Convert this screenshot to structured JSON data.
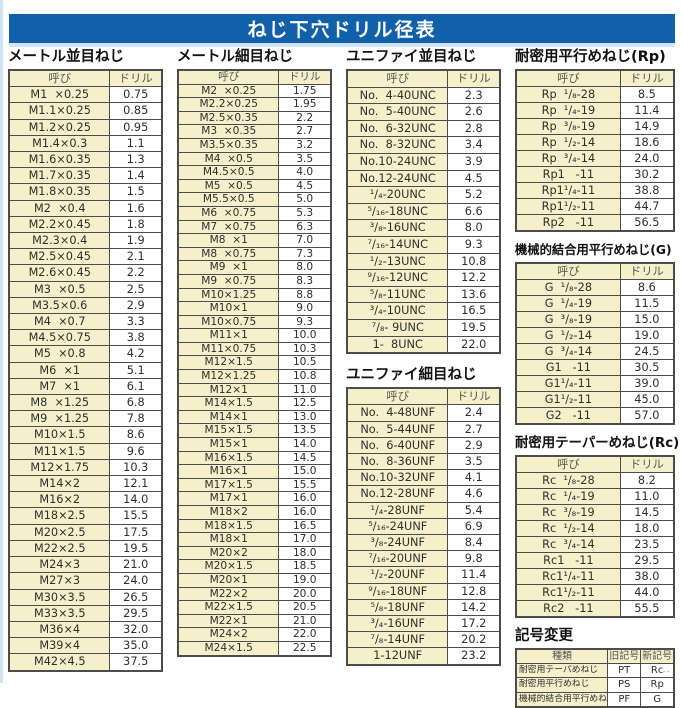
{
  "header": {
    "title": "ねじ下穴ドリル径表"
  },
  "footer": {
    "mark": "--"
  },
  "colors": {
    "band_bg": "#1160aa",
    "band_text": "#ffffff",
    "cell_cream": "#f5f0ca",
    "cell_white": "#ffffff",
    "border": "#4c4c4c",
    "edge_blue": "#cfe4f5"
  },
  "tables": {
    "metric_coarse": {
      "title": "メートル並目ねじ",
      "columns": [
        "呼び",
        "ドリル"
      ],
      "rows": [
        [
          "M1  ×0.25",
          "0.75"
        ],
        [
          "M1.1×0.25",
          "0.85"
        ],
        [
          "M1.2×0.25",
          "0.95"
        ],
        [
          "M1.4×0.3",
          "1.1"
        ],
        [
          "M1.6×0.35",
          "1.3"
        ],
        [
          "M1.7×0.35",
          "1.4"
        ],
        [
          "M1.8×0.35",
          "1.5"
        ],
        [
          "M2  ×0.4",
          "1.6"
        ],
        [
          "M2.2×0.45",
          "1.8"
        ],
        [
          "M2.3×0.4",
          "1.9"
        ],
        [
          "M2.5×0.45",
          "2.1"
        ],
        [
          "M2.6×0.45",
          "2.2"
        ],
        [
          "M3  ×0.5",
          "2.5"
        ],
        [
          "M3.5×0.6",
          "2.9"
        ],
        [
          "M4  ×0.7",
          "3.3"
        ],
        [
          "M4.5×0.75",
          "3.8"
        ],
        [
          "M5  ×0.8",
          "4.2"
        ],
        [
          "M6  ×1",
          "5.1"
        ],
        [
          "M7  ×1",
          "6.1"
        ],
        [
          "M8  ×1.25",
          "6.8"
        ],
        [
          "M9  ×1.25",
          "7.8"
        ],
        [
          "M10×1.5",
          "8.6"
        ],
        [
          "M11×1.5",
          "9.6"
        ],
        [
          "M12×1.75",
          "10.3"
        ],
        [
          "M14×2",
          "12.1"
        ],
        [
          "M16×2",
          "14.0"
        ],
        [
          "M18×2.5",
          "15.5"
        ],
        [
          "M20×2.5",
          "17.5"
        ],
        [
          "M22×2.5",
          "19.5"
        ],
        [
          "M24×3",
          "21.0"
        ],
        [
          "M27×3",
          "24.0"
        ],
        [
          "M30×3.5",
          "26.5"
        ],
        [
          "M33×3.5",
          "29.5"
        ],
        [
          "M36×4",
          "32.0"
        ],
        [
          "M39×4",
          "35.0"
        ],
        [
          "M42×4.5",
          "37.5"
        ]
      ]
    },
    "metric_fine": {
      "title": "メートル細目ねじ",
      "columns": [
        "呼び",
        "ドリル"
      ],
      "rows": [
        [
          "M2  ×0.25",
          "1.75"
        ],
        [
          "M2.2×0.25",
          "1.95"
        ],
        [
          "M2.5×0.35",
          "2.2"
        ],
        [
          "M3  ×0.35",
          "2.7"
        ],
        [
          "M3.5×0.35",
          "3.2"
        ],
        [
          "M4  ×0.5",
          "3.5"
        ],
        [
          "M4.5×0.5",
          "4.0"
        ],
        [
          "M5  ×0.5",
          "4.5"
        ],
        [
          "M5.5×0.5",
          "5.0"
        ],
        [
          "M6  ×0.75",
          "5.3"
        ],
        [
          "M7  ×0.75",
          "6.3"
        ],
        [
          "M8  ×1",
          "7.0"
        ],
        [
          "M8  ×0.75",
          "7.3"
        ],
        [
          "M9  ×1",
          "8.0"
        ],
        [
          "M9  ×0.75",
          "8.3"
        ],
        [
          "M10×1.25",
          "8.8"
        ],
        [
          "M10×1",
          "9.0"
        ],
        [
          "M10×0.75",
          "9.3"
        ],
        [
          "M11×1",
          "10.0"
        ],
        [
          "M11×0.75",
          "10.3"
        ],
        [
          "M12×1.5",
          "10.5"
        ],
        [
          "M12×1.25",
          "10.8"
        ],
        [
          "M12×1",
          "11.0"
        ],
        [
          "M14×1.5",
          "12.5"
        ],
        [
          "M14×1",
          "13.0"
        ],
        [
          "M15×1.5",
          "13.5"
        ],
        [
          "M15×1",
          "14.0"
        ],
        [
          "M16×1.5",
          "14.5"
        ],
        [
          "M16×1",
          "15.0"
        ],
        [
          "M17×1.5",
          "15.5"
        ],
        [
          "M17×1",
          "16.0"
        ],
        [
          "M18×2",
          "16.0"
        ],
        [
          "M18×1.5",
          "16.5"
        ],
        [
          "M18×1",
          "17.0"
        ],
        [
          "M20×2",
          "18.0"
        ],
        [
          "M20×1.5",
          "18.5"
        ],
        [
          "M20×1",
          "19.0"
        ],
        [
          "M22×2",
          "20.0"
        ],
        [
          "M22×1.5",
          "20.5"
        ],
        [
          "M22×1",
          "21.0"
        ],
        [
          "M24×2",
          "22.0"
        ],
        [
          "M24×1.5",
          "22.5"
        ]
      ]
    },
    "unified_coarse": {
      "title": "ユニファイ並目ねじ",
      "columns": [
        "呼び",
        "ドリル"
      ],
      "rows": [
        [
          "No.  4-40UNC",
          "2.3"
        ],
        [
          "No.  5-40UNC",
          "2.6"
        ],
        [
          "No.  6-32UNC",
          "2.8"
        ],
        [
          "No.  8-32UNC",
          "3.4"
        ],
        [
          "No.10-24UNC",
          "3.9"
        ],
        [
          "No.12-24UNC",
          "4.5"
        ],
        [
          "¹/₄-20UNC",
          "5.2"
        ],
        [
          "⁵/₁₆-18UNC",
          "6.6"
        ],
        [
          "³/₈-16UNC",
          "8.0"
        ],
        [
          "⁷/₁₆-14UNC",
          "9.3"
        ],
        [
          "¹/₂-13UNC",
          "10.8"
        ],
        [
          "⁹/₁₆-12UNC",
          "12.2"
        ],
        [
          "⁵/₈-11UNC",
          "13.6"
        ],
        [
          "³/₄-10UNC",
          "16.5"
        ],
        [
          "⁷/₈- 9UNC",
          "19.5"
        ],
        [
          "1-  8UNC",
          "22.0"
        ]
      ]
    },
    "unified_fine": {
      "title": "ユニファイ細目ねじ",
      "columns": [
        "呼び",
        "ドリル"
      ],
      "rows": [
        [
          "No.  4-48UNF",
          "2.4"
        ],
        [
          "No.  5-44UNF",
          "2.7"
        ],
        [
          "No.  6-40UNF",
          "2.9"
        ],
        [
          "No.  8-36UNF",
          "3.5"
        ],
        [
          "No.10-32UNF",
          "4.1"
        ],
        [
          "No.12-28UNF",
          "4.6"
        ],
        [
          "¹/₄-28UNF",
          "5.4"
        ],
        [
          "⁵/₁₆-24UNF",
          "6.9"
        ],
        [
          "³/₈-24UNF",
          "8.4"
        ],
        [
          "⁷/₁₆-20UNF",
          "9.8"
        ],
        [
          "¹/₂-20UNF",
          "11.4"
        ],
        [
          "⁹/₁₆-18UNF",
          "12.8"
        ],
        [
          "⁵/₈-18UNF",
          "14.2"
        ],
        [
          "³/₄-16UNF",
          "17.2"
        ],
        [
          "⁷/₈-14UNF",
          "20.2"
        ],
        [
          "1-12UNF",
          "23.2"
        ]
      ]
    },
    "rp": {
      "title": "耐密用平行めねじ(Rp)",
      "columns": [
        "呼び",
        "ドリル"
      ],
      "rows": [
        [
          "Rp  ¹/₈-28",
          "8.5"
        ],
        [
          "Rp  ¹/₄-19",
          "11.4"
        ],
        [
          "Rp  ³/₈-19",
          "14.9"
        ],
        [
          "Rp  ¹/₂-14",
          "18.6"
        ],
        [
          "Rp  ³/₄-14",
          "24.0"
        ],
        [
          "Rp1   -11",
          "30.2"
        ],
        [
          "Rp1¹/₄-11",
          "38.8"
        ],
        [
          "Rp1¹/₂-11",
          "44.7"
        ],
        [
          "Rp2   -11",
          "56.5"
        ]
      ]
    },
    "g": {
      "title": "機械的結合用平行めねじ(G)",
      "columns": [
        "呼び",
        "ドリル"
      ],
      "rows": [
        [
          "G  ¹/₈-28",
          "8.6"
        ],
        [
          "G  ¹/₄-19",
          "11.5"
        ],
        [
          "G  ³/₈-19",
          "15.0"
        ],
        [
          "G  ¹/₂-14",
          "19.0"
        ],
        [
          "G  ³/₄-14",
          "24.5"
        ],
        [
          "G1   -11",
          "30.5"
        ],
        [
          "G1¹/₄-11",
          "39.0"
        ],
        [
          "G1¹/₂-11",
          "45.0"
        ],
        [
          "G2   -11",
          "57.0"
        ]
      ]
    },
    "rc": {
      "title": "耐密用テーパーめねじ(Rc)",
      "columns": [
        "呼び",
        "ドリル"
      ],
      "rows": [
        [
          "Rc  ¹/₈-28",
          "8.2"
        ],
        [
          "Rc  ¹/₄-19",
          "11.0"
        ],
        [
          "Rc  ³/₈-19",
          "14.5"
        ],
        [
          "Rc  ¹/₂-14",
          "18.0"
        ],
        [
          "Rc  ³/₄-14",
          "23.5"
        ],
        [
          "Rc1   -11",
          "29.5"
        ],
        [
          "Rc1¹/₄-11",
          "38.0"
        ],
        [
          "Rc1¹/₂-11",
          "44.0"
        ],
        [
          "Rc2   -11",
          "55.5"
        ]
      ]
    },
    "symbol_change": {
      "title": "記号変更",
      "columns": [
        "種類",
        "旧記号",
        "新記号"
      ],
      "rows": [
        [
          "耐密用テーパめねじ",
          "PT",
          "Rc"
        ],
        [
          "耐密用平行めねじ",
          "PS",
          "Rp"
        ],
        [
          "機械的結合用平行めねじ",
          "PF",
          "G"
        ]
      ]
    }
  }
}
